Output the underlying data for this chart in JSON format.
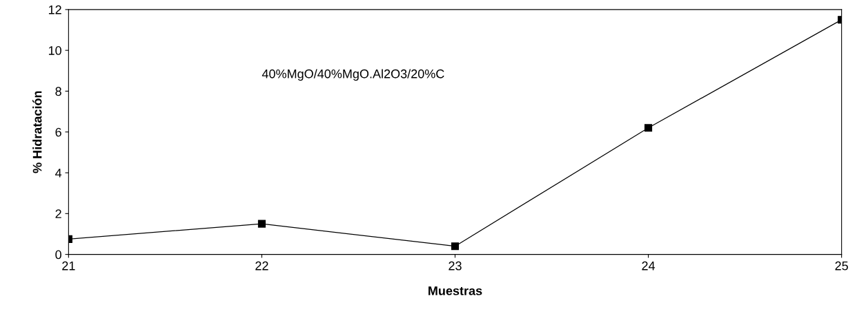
{
  "chart_data": {
    "type": "line",
    "x": [
      21,
      22,
      23,
      24,
      25
    ],
    "series": [
      {
        "color": "#000000",
        "values": [
          0.75,
          1.5,
          0.4,
          6.2,
          11.5
        ]
      }
    ],
    "xlim": [
      21,
      25
    ],
    "xticks": [
      21,
      22,
      23,
      24,
      25
    ],
    "ylim": [
      0,
      12
    ],
    "yticks": [
      0,
      2,
      4,
      6,
      8,
      10,
      12
    ],
    "xlabel": "Muestras",
    "ylabel": "% Hidratación",
    "annotations": [
      "40%MgO/40%MgO.Al2O3/20%C"
    ],
    "marker": "square",
    "line_style": "solid",
    "grid": false,
    "legend": false
  }
}
